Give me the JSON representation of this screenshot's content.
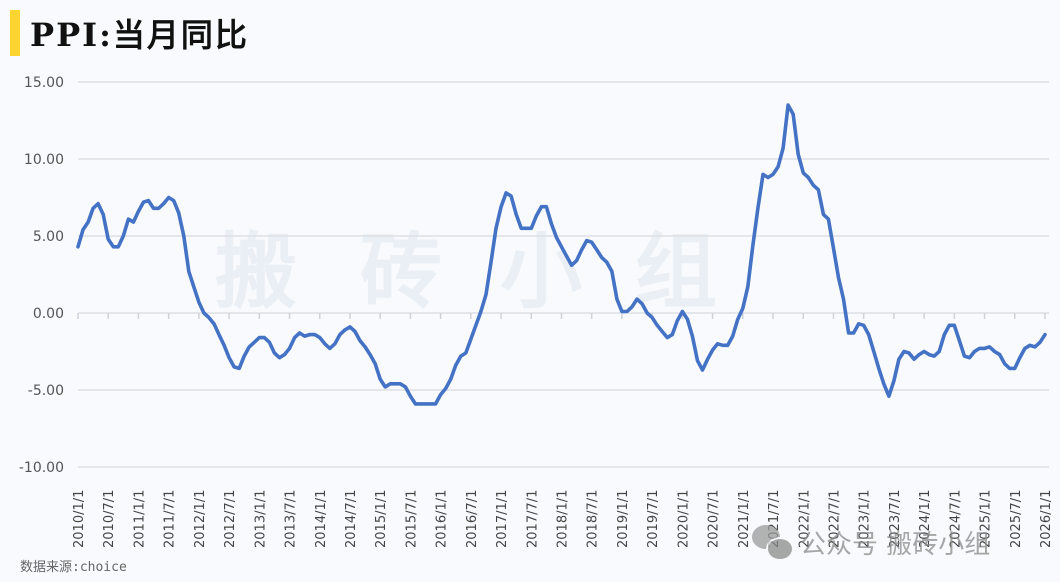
{
  "header": {
    "title": "PPI:当月同比",
    "accent_color": "#fcd530"
  },
  "footer": {
    "source": "数据来源:choice",
    "wechat_label": "公众号 搬砖小组"
  },
  "watermark": [
    "搬",
    "砖",
    "小",
    "组"
  ],
  "chart_data": {
    "type": "line",
    "title": "PPI:当月同比",
    "xlabel": "",
    "ylabel": "",
    "ylim": [
      -10,
      15
    ],
    "yticks": [
      "15.00",
      "10.00",
      "5.00",
      "0.00",
      "-5.00",
      "-10.00"
    ],
    "ytick_values": [
      15,
      10,
      5,
      0,
      -5,
      -10
    ],
    "grid": "horizontal",
    "legend": "none",
    "line_color": "#4472c4",
    "x_tick_labels": [
      "2010/1/1",
      "2010/7/1",
      "2011/1/1",
      "2011/7/1",
      "2012/1/1",
      "2012/7/1",
      "2013/1/1",
      "2013/7/1",
      "2014/1/1",
      "2014/7/1",
      "2015/1/1",
      "2015/7/1",
      "2016/1/1",
      "2016/7/1",
      "2017/1/1",
      "2017/7/1",
      "2018/1/1",
      "2018/7/1",
      "2019/1/1",
      "2019/7/1",
      "2020/1/1",
      "2020/7/1",
      "2021/1/1",
      "2021/7/1",
      "2022/1/1",
      "2022/7/1",
      "2023/1/1",
      "2023/7/1",
      "2024/1/1",
      "2024/7/1",
      "2025/1/1",
      "2025/7/1",
      "2026/1/1"
    ],
    "start": "2010-01",
    "frequency": "monthly",
    "series": [
      {
        "name": "PPI:当月同比",
        "values": [
          4.3,
          5.4,
          5.9,
          6.8,
          7.1,
          6.4,
          4.8,
          4.3,
          4.3,
          5.0,
          6.1,
          5.9,
          6.6,
          7.2,
          7.3,
          6.8,
          6.8,
          7.1,
          7.5,
          7.3,
          6.5,
          5.0,
          2.7,
          1.7,
          0.7,
          0.0,
          -0.3,
          -0.7,
          -1.4,
          -2.1,
          -2.9,
          -3.5,
          -3.6,
          -2.8,
          -2.2,
          -1.9,
          -1.6,
          -1.6,
          -1.9,
          -2.6,
          -2.9,
          -2.7,
          -2.3,
          -1.6,
          -1.3,
          -1.5,
          -1.4,
          -1.4,
          -1.6,
          -2.0,
          -2.3,
          -2.0,
          -1.4,
          -1.1,
          -0.9,
          -1.2,
          -1.8,
          -2.2,
          -2.7,
          -3.3,
          -4.3,
          -4.8,
          -4.6,
          -4.6,
          -4.6,
          -4.8,
          -5.4,
          -5.9,
          -5.9,
          -5.9,
          -5.9,
          -5.9,
          -5.3,
          -4.9,
          -4.3,
          -3.4,
          -2.8,
          -2.6,
          -1.7,
          -0.8,
          0.1,
          1.2,
          3.3,
          5.5,
          6.9,
          7.8,
          7.6,
          6.4,
          5.5,
          5.5,
          5.5,
          6.3,
          6.9,
          6.9,
          5.8,
          4.9,
          4.3,
          3.7,
          3.1,
          3.4,
          4.1,
          4.7,
          4.6,
          4.1,
          3.6,
          3.3,
          2.7,
          0.9,
          0.1,
          0.1,
          0.4,
          0.9,
          0.6,
          0.0,
          -0.3,
          -0.8,
          -1.2,
          -1.6,
          -1.4,
          -0.5,
          0.1,
          -0.4,
          -1.5,
          -3.1,
          -3.7,
          -3.0,
          -2.4,
          -2.0,
          -2.1,
          -2.1,
          -1.5,
          -0.4,
          0.3,
          1.7,
          4.4,
          6.8,
          9.0,
          8.8,
          9.0,
          9.5,
          10.7,
          13.5,
          12.9,
          10.3,
          9.1,
          8.8,
          8.3,
          8.0,
          6.4,
          6.1,
          4.2,
          2.3,
          0.9,
          -1.3,
          -1.3,
          -0.7,
          -0.8,
          -1.4,
          -2.5,
          -3.6,
          -4.6,
          -5.4,
          -4.4,
          -3.0,
          -2.5,
          -2.6,
          -3.0,
          -2.7,
          -2.5,
          -2.7,
          -2.8,
          -2.5,
          -1.4,
          -0.8,
          -0.8,
          -1.8,
          -2.8,
          -2.9,
          -2.5,
          -2.3,
          -2.3,
          -2.2,
          -2.5,
          -2.7,
          -3.3,
          -3.6,
          -3.6,
          -2.9,
          -2.3,
          -2.1,
          -2.2,
          -1.9,
          -1.4
        ]
      }
    ]
  }
}
